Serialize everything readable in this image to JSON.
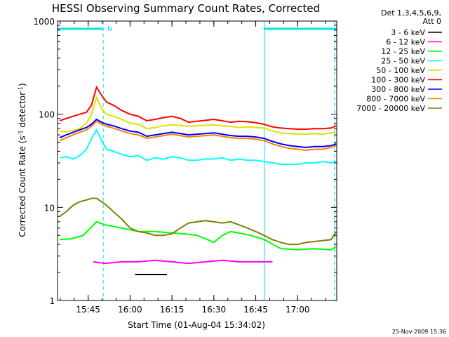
{
  "chart_data": {
    "type": "line",
    "title": "HESSI Observing Summary Count Rates, Corrected",
    "xlabel": "Start Time (01-Aug-04 15:34:02)",
    "ylabel": "Corrected Count Rate (s",
    "ylabel_sup1": "-1",
    "ylabel_mid": " detector",
    "ylabel_sup2": "-1",
    "ylabel_end": ")",
    "yscale": "log",
    "ylim": [
      1,
      1000
    ],
    "xlim": [
      15.5672,
      17.2333
    ],
    "x_ticks": [
      {
        "value": 15.75,
        "label": "15:45"
      },
      {
        "value": 16.0,
        "label": "16:00"
      },
      {
        "value": 16.25,
        "label": "16:15"
      },
      {
        "value": 16.5,
        "label": "16:30"
      },
      {
        "value": 16.75,
        "label": "16:45"
      },
      {
        "value": 17.0,
        "label": "17:00"
      }
    ],
    "y_ticks": [
      {
        "value": 1,
        "label": "1"
      },
      {
        "value": 10,
        "label": "10"
      },
      {
        "value": 100,
        "label": "100"
      },
      {
        "value": 1000,
        "label": "1000"
      }
    ],
    "legend_title_1": "Det 1,3,4,5,6,9,",
    "legend_title_2": "Att 0",
    "legend_position": "outside-right",
    "timestamp": "25-Nov-2009 15:36",
    "night_label": "N",
    "night_intervals": [
      [
        15.5672,
        15.84
      ],
      [
        16.8,
        17.2333
      ]
    ],
    "time_markers": [
      15.84,
      16.8,
      17.22
    ],
    "series": [
      {
        "name": "3 - 6 keV",
        "color": "#000000",
        "x": [
          16.03,
          16.06,
          16.09,
          16.12,
          16.15,
          16.18,
          16.22
        ],
        "y": [
          1.9,
          1.9,
          1.9,
          1.9,
          1.9,
          1.9,
          1.9
        ]
      },
      {
        "name": "6 - 12 keV",
        "color": "#ff00ff",
        "x": [
          15.78,
          15.85,
          15.95,
          16.05,
          16.15,
          16.25,
          16.35,
          16.45,
          16.55,
          16.65,
          16.75,
          16.85
        ],
        "y": [
          2.6,
          2.5,
          2.6,
          2.6,
          2.7,
          2.6,
          2.5,
          2.6,
          2.7,
          2.6,
          2.6,
          2.6
        ]
      },
      {
        "name": "12 - 25 keV",
        "color": "#00ff00",
        "x": [
          15.58,
          15.65,
          15.72,
          15.8,
          15.85,
          15.95,
          16.05,
          16.15,
          16.25,
          16.32,
          16.4,
          16.45,
          16.5,
          16.55,
          16.6,
          16.65,
          16.72,
          16.8,
          16.9,
          17.0,
          17.1,
          17.2,
          17.23
        ],
        "y": [
          4.5,
          4.6,
          5.0,
          7.0,
          6.5,
          6.0,
          5.5,
          5.5,
          5.3,
          5.2,
          5.0,
          4.6,
          4.2,
          5.0,
          5.5,
          5.3,
          5.0,
          4.5,
          3.6,
          3.5,
          3.6,
          3.5,
          3.8
        ]
      },
      {
        "name": "25 - 50 keV",
        "color": "#00ffff",
        "x": [
          15.58,
          15.62,
          15.66,
          15.7,
          15.74,
          15.77,
          15.8,
          15.83,
          15.86,
          15.9,
          15.95,
          16.0,
          16.05,
          16.1,
          16.15,
          16.2,
          16.25,
          16.3,
          16.35,
          16.4,
          16.45,
          16.5,
          16.55,
          16.6,
          16.65,
          16.7,
          16.75,
          16.8,
          16.85,
          16.9,
          16.95,
          17.0,
          17.05,
          17.1,
          17.15,
          17.2,
          17.23
        ],
        "y": [
          34,
          35,
          33,
          36,
          42,
          55,
          68,
          52,
          42,
          40,
          37,
          35,
          36,
          32,
          34,
          33,
          35,
          34,
          32,
          32,
          33,
          33,
          34,
          32,
          33,
          32,
          32,
          31,
          30,
          29,
          29,
          29,
          30,
          30,
          31,
          30,
          31
        ]
      },
      {
        "name": "50 - 100 keV",
        "color": "#e0e000",
        "x": [
          15.58,
          15.62,
          15.66,
          15.7,
          15.74,
          15.77,
          15.8,
          15.83,
          15.86,
          15.9,
          15.95,
          16.0,
          16.05,
          16.1,
          16.15,
          16.2,
          16.25,
          16.3,
          16.35,
          16.4,
          16.45,
          16.5,
          16.55,
          16.6,
          16.65,
          16.7,
          16.75,
          16.8,
          16.85,
          16.9,
          16.95,
          17.0,
          17.05,
          17.1,
          17.15,
          17.2,
          17.23
        ],
        "y": [
          66,
          65,
          67,
          70,
          80,
          100,
          150,
          115,
          100,
          95,
          88,
          80,
          78,
          70,
          72,
          75,
          77,
          76,
          74,
          75,
          76,
          77,
          75,
          74,
          72,
          73,
          72,
          71,
          66,
          63,
          62,
          61,
          61,
          62,
          61,
          63,
          64
        ]
      },
      {
        "name": "100 - 300 keV",
        "color": "#ff0000",
        "x": [
          15.58,
          15.62,
          15.66,
          15.7,
          15.74,
          15.77,
          15.8,
          15.83,
          15.86,
          15.9,
          15.95,
          16.0,
          16.05,
          16.1,
          16.15,
          16.2,
          16.25,
          16.3,
          16.35,
          16.4,
          16.45,
          16.5,
          16.55,
          16.6,
          16.65,
          16.7,
          16.75,
          16.8,
          16.85,
          16.9,
          16.95,
          17.0,
          17.05,
          17.1,
          17.15,
          17.2,
          17.23
        ],
        "y": [
          85,
          90,
          95,
          100,
          105,
          125,
          195,
          160,
          135,
          125,
          110,
          100,
          95,
          85,
          88,
          92,
          95,
          90,
          82,
          84,
          86,
          88,
          85,
          82,
          84,
          83,
          81,
          78,
          73,
          71,
          70,
          69,
          69,
          70,
          70,
          71,
          75
        ]
      },
      {
        "name": "300 - 800 keV",
        "color": "#0000ff",
        "x": [
          15.58,
          15.62,
          15.66,
          15.7,
          15.74,
          15.77,
          15.8,
          15.83,
          15.86,
          15.9,
          15.95,
          16.0,
          16.05,
          16.1,
          16.15,
          16.2,
          16.25,
          16.3,
          16.35,
          16.4,
          16.45,
          16.5,
          16.55,
          16.6,
          16.65,
          16.7,
          16.75,
          16.8,
          16.85,
          16.9,
          16.95,
          17.0,
          17.05,
          17.1,
          17.15,
          17.2,
          17.23
        ],
        "y": [
          56,
          60,
          64,
          68,
          72,
          78,
          88,
          82,
          78,
          75,
          70,
          66,
          64,
          58,
          60,
          62,
          64,
          62,
          60,
          61,
          62,
          63,
          61,
          59,
          58,
          58,
          57,
          55,
          51,
          48,
          46,
          45,
          44,
          45,
          45,
          46,
          48
        ]
      },
      {
        "name": "800 - 7000 keV",
        "color": "#ff8000",
        "x": [
          15.58,
          15.62,
          15.66,
          15.7,
          15.74,
          15.77,
          15.8,
          15.83,
          15.86,
          15.9,
          15.95,
          16.0,
          16.05,
          16.1,
          16.15,
          16.2,
          16.25,
          16.3,
          16.35,
          16.4,
          16.45,
          16.5,
          16.55,
          16.6,
          16.65,
          16.7,
          16.75,
          16.8,
          16.85,
          16.9,
          16.95,
          17.0,
          17.05,
          17.1,
          17.15,
          17.2,
          17.23
        ],
        "y": [
          52,
          56,
          60,
          64,
          68,
          74,
          84,
          78,
          74,
          71,
          66,
          62,
          60,
          55,
          57,
          59,
          61,
          59,
          57,
          58,
          59,
          60,
          58,
          56,
          55,
          55,
          54,
          52,
          48,
          45,
          43,
          42,
          41,
          42,
          42,
          44,
          46
        ]
      },
      {
        "name": "7000 - 20000 keV",
        "color": "#808000",
        "x": [
          15.58,
          15.62,
          15.66,
          15.7,
          15.74,
          15.77,
          15.8,
          15.83,
          15.86,
          15.9,
          15.95,
          16.0,
          16.05,
          16.1,
          16.15,
          16.2,
          16.25,
          16.3,
          16.35,
          16.4,
          16.45,
          16.5,
          16.55,
          16.6,
          16.65,
          16.7,
          16.75,
          16.8,
          16.85,
          16.9,
          16.95,
          17.0,
          17.05,
          17.1,
          17.15,
          17.2,
          17.23
        ],
        "y": [
          8.0,
          9.0,
          10.5,
          11.5,
          12.0,
          12.5,
          12.5,
          11.5,
          10.5,
          9.0,
          7.5,
          6.0,
          5.5,
          5.3,
          5.0,
          5.0,
          5.2,
          6.0,
          6.8,
          7.0,
          7.2,
          7.0,
          6.8,
          7.0,
          6.5,
          6.0,
          5.5,
          5.0,
          4.5,
          4.2,
          4.0,
          4.0,
          4.2,
          4.3,
          4.4,
          4.5,
          5.5
        ]
      }
    ]
  }
}
